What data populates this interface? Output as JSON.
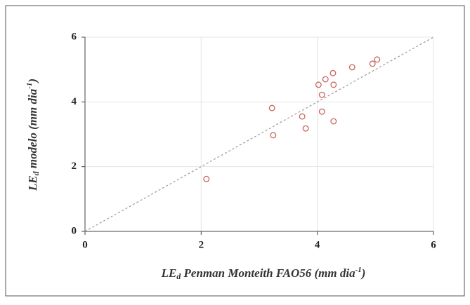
{
  "chart_data": {
    "type": "scatter",
    "xlabel": {
      "main": "LE",
      "sub": "d",
      "rest": "  Penman Monteith FAO56 (mm dia",
      "sup": "-1",
      "end": ")"
    },
    "ylabel": {
      "main": "LE",
      "sub": "d",
      "rest": " modelo (mm dia",
      "sup": "-1",
      "end": ")"
    },
    "x": [
      2.09,
      3.22,
      3.24,
      3.74,
      3.8,
      4.02,
      4.08,
      4.08,
      4.14,
      4.28,
      4.27,
      4.28,
      4.6,
      4.95,
      5.03
    ],
    "values": [
      1.62,
      3.81,
      2.97,
      3.55,
      3.18,
      4.53,
      4.22,
      3.7,
      4.7,
      3.4,
      4.89,
      4.53,
      5.07,
      5.18,
      5.31
    ],
    "color": "#c8645a",
    "xlim": [
      0,
      6
    ],
    "ylim": [
      0,
      6
    ],
    "xticks": [
      0,
      2,
      4,
      6
    ],
    "yticks": [
      0,
      2,
      4,
      6
    ],
    "grid": true,
    "identity_line": true
  }
}
